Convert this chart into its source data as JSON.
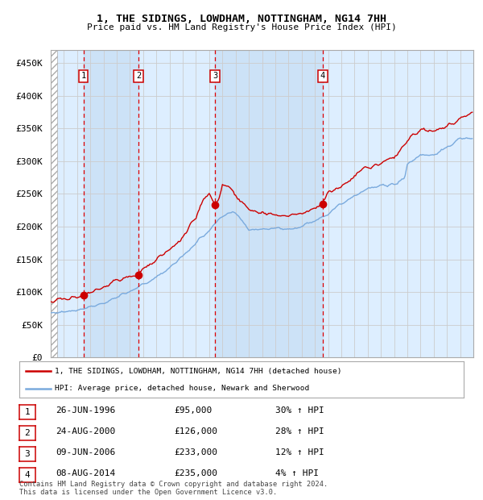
{
  "title1": "1, THE SIDINGS, LOWDHAM, NOTTINGHAM, NG14 7HH",
  "title2": "Price paid vs. HM Land Registry's House Price Index (HPI)",
  "ytick_values": [
    0,
    50000,
    100000,
    150000,
    200000,
    250000,
    300000,
    350000,
    400000,
    450000
  ],
  "ylim": [
    0,
    470000
  ],
  "x_start_year": 1994,
  "x_end_year": 2025,
  "sales": [
    {
      "label": 1,
      "date_decimal": 1996.48,
      "price": 95000,
      "pct": "30%",
      "date_str": "26-JUN-1996",
      "price_str": "£95,000"
    },
    {
      "label": 2,
      "date_decimal": 2000.64,
      "price": 126000,
      "pct": "28%",
      "date_str": "24-AUG-2000",
      "price_str": "£126,000"
    },
    {
      "label": 3,
      "date_decimal": 2006.44,
      "price": 233000,
      "pct": "12%",
      "date_str": "09-JUN-2006",
      "price_str": "£233,000"
    },
    {
      "label": 4,
      "date_decimal": 2014.6,
      "price": 235000,
      "pct": "4%",
      "date_str": "08-AUG-2014",
      "price_str": "£235,000"
    }
  ],
  "hpi_color": "#7aaadd",
  "price_color": "#cc0000",
  "sale_marker_color": "#cc0000",
  "grid_color": "#cccccc",
  "bg_color": "#ddeeff",
  "dashed_color": "#dd0000",
  "legend_label_red": "1, THE SIDINGS, LOWDHAM, NOTTINGHAM, NG14 7HH (detached house)",
  "legend_label_blue": "HPI: Average price, detached house, Newark and Sherwood",
  "footer": "Contains HM Land Registry data © Crown copyright and database right 2024.\nThis data is licensed under the Open Government Licence v3.0."
}
